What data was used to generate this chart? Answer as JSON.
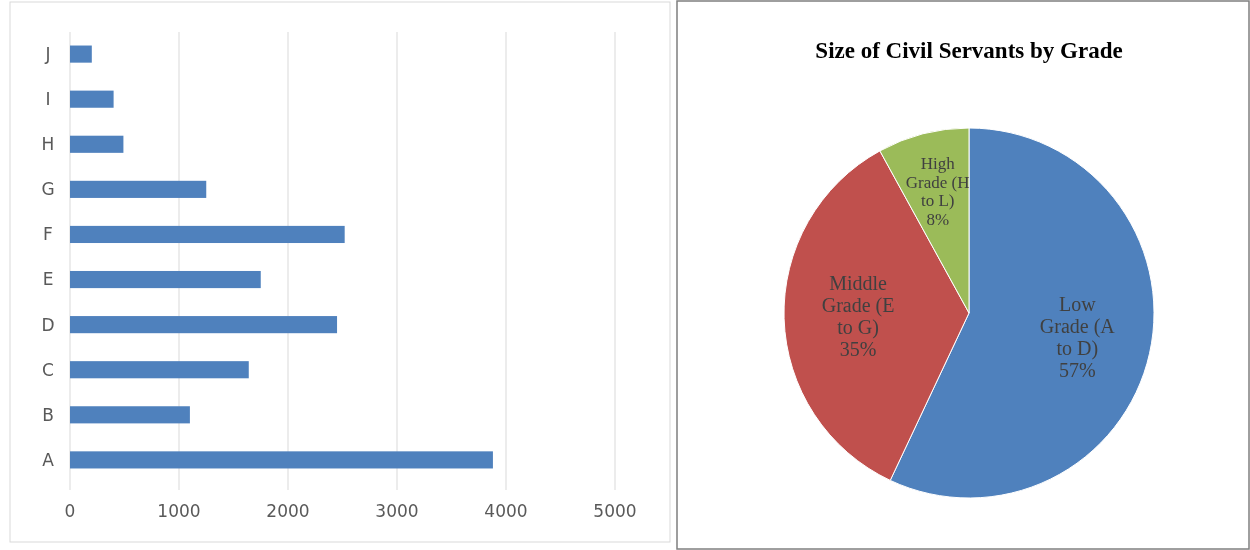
{
  "chart_data": [
    {
      "type": "bar",
      "orientation": "horizontal",
      "categories": [
        "J",
        "I",
        "H",
        "G",
        "F",
        "E",
        "D",
        "C",
        "B",
        "A"
      ],
      "values": [
        200,
        400,
        490,
        1250,
        2520,
        1750,
        2450,
        1640,
        1100,
        3880
      ],
      "color": "#4f81bd",
      "xlim": [
        0,
        5000
      ],
      "xticks": [
        0,
        1000,
        2000,
        3000,
        4000,
        5000
      ],
      "grid": "x"
    },
    {
      "type": "pie",
      "title": "Size of Civil Servants by Grade",
      "categories": [
        "Low Grade (A to D)",
        "Middle Grade (E to G)",
        "High Grade (H to L)"
      ],
      "values": [
        57,
        35,
        8
      ],
      "colors": [
        "#4f81bd",
        "#c0504d",
        "#9bbb59"
      ],
      "value_labels": [
        "57%",
        "35%",
        "8%"
      ]
    }
  ]
}
